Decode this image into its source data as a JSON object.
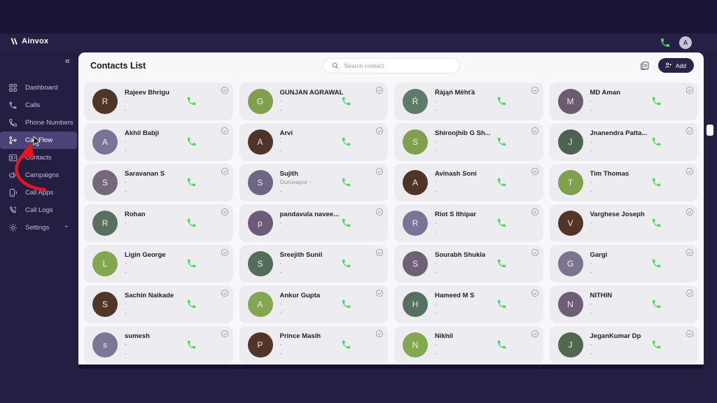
{
  "app": {
    "brand": "Ainvox"
  },
  "topbar": {
    "avatar_initial": "A",
    "phone_icon_color": "#3fdf59"
  },
  "sidebar": {
    "collapse_glyph": "«",
    "items": [
      {
        "label": "Dashboard",
        "icon": "dashboard-icon",
        "active": false
      },
      {
        "label": "Calls",
        "icon": "calls-icon",
        "active": false
      },
      {
        "label": "Phone Numbers",
        "icon": "phone-numbers-icon",
        "active": false
      },
      {
        "label": "Call Flow",
        "icon": "call-flow-icon",
        "active": true
      },
      {
        "label": "Contacts",
        "icon": "contacts-icon",
        "active": false
      },
      {
        "label": "Campaigns",
        "icon": "campaigns-icon",
        "active": false
      },
      {
        "label": "Call Apps",
        "icon": "call-apps-icon",
        "active": false
      },
      {
        "label": "Call Logs",
        "icon": "call-logs-icon",
        "active": false
      },
      {
        "label": "Settings",
        "icon": "settings-icon",
        "active": false,
        "has_chevron": true
      }
    ]
  },
  "header": {
    "title": "Contacts List",
    "search_placeholder": "Search contact",
    "add_label": "Add"
  },
  "annotation": {
    "color": "#e4151d",
    "target": "Call Flow"
  },
  "colors": {
    "accent_green": "#3fdf59",
    "sidebar_active": "#4a4378",
    "panel_bg": "#f8f7fa",
    "card_bg": "#edecf1"
  },
  "contacts": [
    {
      "name": "Rajeev Bhrigu",
      "initial": "R",
      "color": "#4f3428",
      "line1": "-",
      "line2": "-"
    },
    {
      "name": "GUNJAN AGRAWAL",
      "initial": "G",
      "color": "#7fa04c",
      "line1": "-",
      "line2": "-"
    },
    {
      "name": "Ŕàjąń Mêhťä",
      "initial": "Ŕ",
      "color": "#5e7a6a",
      "line1": "-",
      "line2": "-"
    },
    {
      "name": "MD Aman",
      "initial": "M",
      "color": "#6c5a71",
      "line1": "-",
      "line2": "-"
    },
    {
      "name": "Akhil Babji",
      "initial": "A",
      "color": "#7a7496",
      "line1": "-",
      "line2": "-"
    },
    {
      "name": "Arvi",
      "initial": "A",
      "color": "#4f3428",
      "line1": "-",
      "line2": "-"
    },
    {
      "name": "Shironjhib G Sh...",
      "initial": "S",
      "color": "#7fa04c",
      "line1": "-",
      "line2": "-"
    },
    {
      "name": "Jnanendra Patta...",
      "initial": "J",
      "color": "#4e6251",
      "line1": "-",
      "line2": "-"
    },
    {
      "name": "Saravanan S",
      "initial": "S",
      "color": "#73687c",
      "line1": "-",
      "line2": "-"
    },
    {
      "name": "Sujith",
      "initial": "S",
      "color": "#6e6483",
      "line1": "Guruvayur -",
      "line2": "-"
    },
    {
      "name": "Avinash Soni",
      "initial": "A",
      "color": "#4f3428",
      "line1": "-",
      "line2": "-"
    },
    {
      "name": "Tim Thomas",
      "initial": "T",
      "color": "#7fa04c",
      "line1": "-",
      "line2": "-"
    },
    {
      "name": "Rohan",
      "initial": "R",
      "color": "#5b6f5e",
      "line1": "-",
      "line2": "-"
    },
    {
      "name": "pandavula navee...",
      "initial": "p",
      "color": "#6d5c78",
      "line1": "-",
      "line2": "-"
    },
    {
      "name": "Riot S Ithipar",
      "initial": "R",
      "color": "#7a7496",
      "line1": "-",
      "line2": "-"
    },
    {
      "name": "Varghese Joseph",
      "initial": "V",
      "color": "#513627",
      "line1": "-",
      "line2": "-"
    },
    {
      "name": "Ligin George",
      "initial": "L",
      "color": "#82a74e",
      "line1": "-",
      "line2": "-"
    },
    {
      "name": "Sreejith Sunil",
      "initial": "S",
      "color": "#526e5b",
      "line1": "-",
      "line2": "-"
    },
    {
      "name": "Sourabh Shukla",
      "initial": "S",
      "color": "#6e6174",
      "line1": "-",
      "line2": "-"
    },
    {
      "name": "Gargi",
      "initial": "G",
      "color": "#7a7490",
      "line1": "-",
      "line2": "-"
    },
    {
      "name": "Sachin Naikade",
      "initial": "S",
      "color": "#513627",
      "line1": "-",
      "line2": "-"
    },
    {
      "name": "Ankur Gupta",
      "initial": "A",
      "color": "#82a74e",
      "line1": "-",
      "line2": "-"
    },
    {
      "name": "Hameed M S",
      "initial": "H",
      "color": "#547060",
      "line1": "-",
      "line2": "-"
    },
    {
      "name": "NITHIN",
      "initial": "N",
      "color": "#6d5e76",
      "line1": "-",
      "line2": "-"
    },
    {
      "name": "sumesh",
      "initial": "s",
      "color": "#7d7797",
      "line1": "-",
      "line2": "-"
    },
    {
      "name": "Prince Masih",
      "initial": "P",
      "color": "#513627",
      "line1": "-",
      "line2": "-"
    },
    {
      "name": "Nikhil",
      "initial": "N",
      "color": "#84a84e",
      "line1": "-",
      "line2": "-"
    },
    {
      "name": "JeganKumar Dp",
      "initial": "J",
      "color": "#51684f",
      "line1": "-",
      "line2": "-"
    }
  ]
}
